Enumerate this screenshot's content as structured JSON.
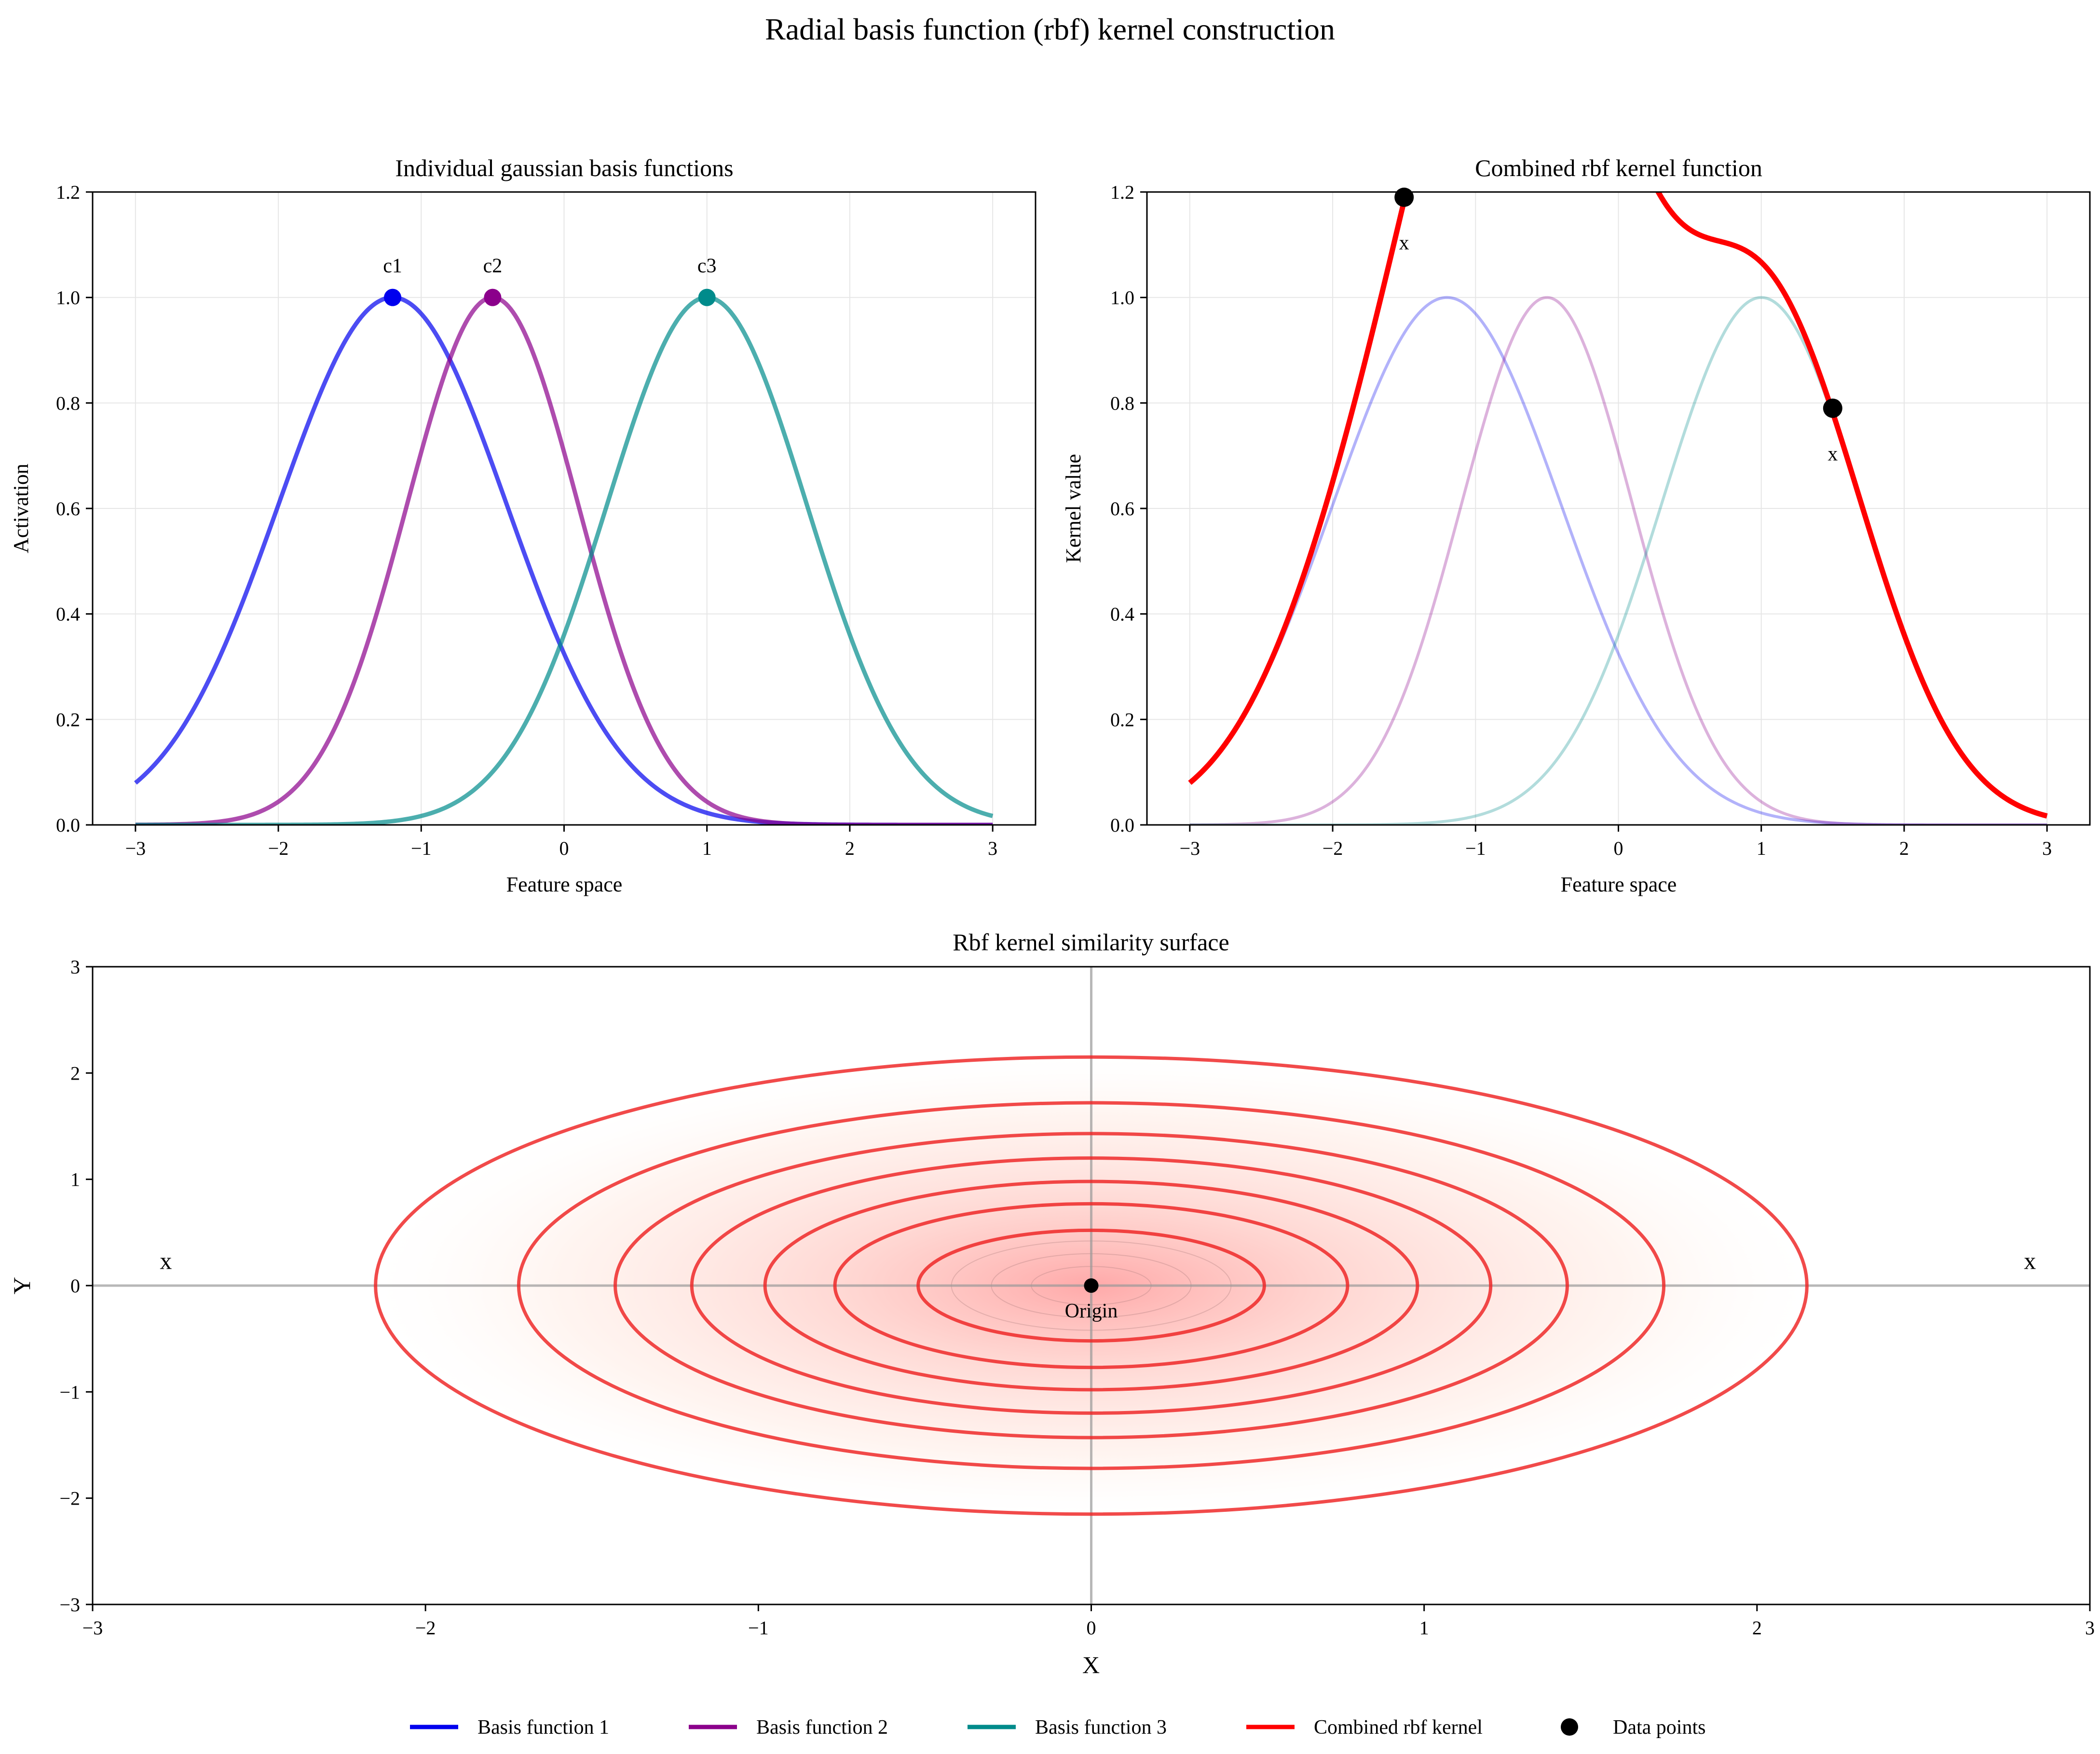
{
  "figure": {
    "title": "Radial basis function (rbf) kernel construction"
  },
  "colors": {
    "basis1": "#0000ee",
    "basis2": "#8b008b",
    "basis3": "#008b8b",
    "combined": "#ff0000",
    "points": "#000000",
    "contour": "#ee2222"
  },
  "chart_data": [
    {
      "id": "basis",
      "type": "line",
      "title": "Individual gaussian basis functions",
      "xlabel": "Feature space",
      "ylabel": "Activation",
      "xlim": [
        -3.3,
        3.3
      ],
      "ylim": [
        0,
        1.2
      ],
      "xticks": [
        -3,
        -2,
        -1,
        0,
        1,
        2,
        3
      ],
      "yticks": [
        0.0,
        0.2,
        0.4,
        0.6,
        0.8,
        1.0,
        1.2
      ],
      "ytick_labels": [
        "0.0",
        "0.2",
        "0.4",
        "0.6",
        "0.8",
        "1.0",
        "1.2"
      ],
      "grid": true,
      "x_range": [
        -3,
        3
      ],
      "series": [
        {
          "name": "Basis function 1",
          "center": -1.2,
          "width": 0.8,
          "color": "#0000ee"
        },
        {
          "name": "Basis function 2",
          "center": -0.5,
          "width": 0.6,
          "color": "#8b008b"
        },
        {
          "name": "Basis function 3",
          "center": 1.0,
          "width": 0.7,
          "color": "#008b8b"
        }
      ],
      "centers": [
        {
          "label": "c1",
          "x": -1.2,
          "y": 1.0
        },
        {
          "label": "c2",
          "x": -0.5,
          "y": 1.0
        },
        {
          "label": "c3",
          "x": 1.0,
          "y": 1.0
        }
      ]
    },
    {
      "id": "combined",
      "type": "line",
      "title": "Combined rbf kernel function",
      "xlabel": "Feature space",
      "ylabel": "Kernel value",
      "xlim": [
        -3.3,
        3.3
      ],
      "ylim": [
        0,
        1.2
      ],
      "xticks": [
        -3,
        -2,
        -1,
        0,
        1,
        2,
        3
      ],
      "yticks": [
        0.0,
        0.2,
        0.4,
        0.6,
        0.8,
        1.0,
        1.2
      ],
      "ytick_labels": [
        "0.0",
        "0.2",
        "0.4",
        "0.6",
        "0.8",
        "1.0",
        "1.2"
      ],
      "grid": true,
      "combined_series": {
        "name": "Combined rbf kernel",
        "color": "#ff0000"
      },
      "data_points": [
        {
          "label": "x",
          "x": -1.5,
          "y": 1.19
        },
        {
          "label": "x",
          "x": 1.5,
          "y": 0.79
        }
      ]
    },
    {
      "id": "surface",
      "type": "contour",
      "title": "Rbf kernel similarity surface",
      "xlabel": "X",
      "ylabel": "Y",
      "xlim": [
        -3,
        3
      ],
      "ylim": [
        -3,
        3
      ],
      "xticks": [
        -3,
        -2,
        -1,
        0,
        1,
        2,
        3
      ],
      "yticks": [
        -3,
        -2,
        -1,
        0,
        1,
        2,
        3
      ],
      "contour_radii": [
        0.52,
        0.77,
        0.98,
        1.2,
        1.43,
        1.72,
        2.15
      ],
      "ellipse_aspect_y_over_x": 1.0,
      "origin": {
        "label": "Origin",
        "x": 0,
        "y": 0
      },
      "side_labels": [
        {
          "label": "x",
          "x": -2.78,
          "y": 0.22
        },
        {
          "label": "x",
          "x": 2.82,
          "y": 0.22
        }
      ]
    }
  ],
  "legend": {
    "position": "bottom-center",
    "entries": [
      {
        "label": "Basis function 1",
        "kind": "line",
        "color": "#0000ee"
      },
      {
        "label": "Basis function 2",
        "kind": "line",
        "color": "#8b008b"
      },
      {
        "label": "Basis function 3",
        "kind": "line",
        "color": "#008b8b"
      },
      {
        "label": "Combined rbf kernel",
        "kind": "line",
        "color": "#ff0000"
      },
      {
        "label": "Data points",
        "kind": "marker",
        "color": "#000000"
      }
    ]
  }
}
